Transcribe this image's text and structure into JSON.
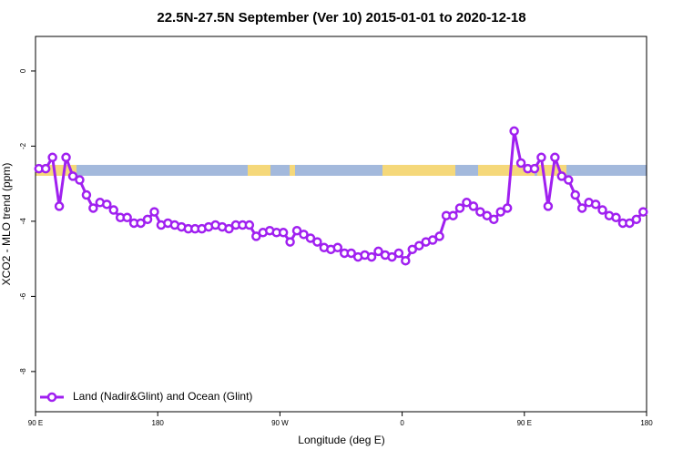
{
  "chart_data": {
    "type": "line",
    "title": "22.5N-27.5N September (Ver 10)   2015-01-01 to 2020-12-18",
    "x_label": "Longitude (deg E)",
    "y_label": "XCO2 - MLO trend (ppm)",
    "xlim": [
      90,
      540
    ],
    "xticks": [
      {
        "value": 90,
        "label": "90 E"
      },
      180,
      {
        "value": 270,
        "label": "90 W"
      },
      {
        "value": 360,
        "label": "0"
      },
      {
        "value": 450,
        "label": "90 E"
      },
      {
        "value": 540,
        "label": "180"
      }
    ],
    "ylim": [
      -9.07,
      0.92
    ],
    "yticks": [
      0,
      -2,
      -4,
      -6,
      -8
    ],
    "legend": "bottom-left",
    "x": [
      92.5,
      97.5,
      102.5,
      107.5,
      112.5,
      117.5,
      122.5,
      127.5,
      132.5,
      137.5,
      142.5,
      147.5,
      152.5,
      157.5,
      162.5,
      167.5,
      172.5,
      177.5,
      182.5,
      187.5,
      192.5,
      197.5,
      202.5,
      207.5,
      212.5,
      217.5,
      222.5,
      227.5,
      232.5,
      237.5,
      242.5,
      247.5,
      252.5,
      257.5,
      262.5,
      267.5,
      272.5,
      277.5,
      282.5,
      287.5,
      292.5,
      297.5,
      302.5,
      307.5,
      312.5,
      317.5,
      322.5,
      327.5,
      332.5,
      337.5,
      342.5,
      347.5,
      352.5,
      357.5,
      362.5,
      367.5,
      372.5,
      377.5,
      382.5,
      387.5,
      392.5,
      397.5,
      402.5,
      407.5,
      412.5,
      417.5,
      422.5,
      427.5,
      432.5,
      437.5,
      442.5,
      447.5,
      452.5,
      457.5,
      462.5,
      467.5,
      472.5,
      477.5,
      482.5,
      487.5,
      492.5,
      497.5,
      502.5,
      507.5,
      512.5,
      517.5,
      522.5,
      527.5,
      532.5,
      537.5
    ],
    "series": [
      {
        "name": "Land (Nadir&Glint) and Ocean (Glint)",
        "color": "#a020f0",
        "values": [
          -2.6,
          -2.6,
          -2.3,
          -3.6,
          -2.3,
          -2.8,
          -2.9,
          -3.3,
          -3.65,
          -3.5,
          -3.55,
          -3.7,
          -3.9,
          -3.9,
          -4.05,
          -4.05,
          -3.95,
          -3.75,
          -4.1,
          -4.05,
          -4.1,
          -4.15,
          -4.2,
          -4.2,
          -4.2,
          -4.15,
          -4.1,
          -4.15,
          -4.2,
          -4.1,
          -4.1,
          -4.1,
          -4.4,
          -4.3,
          -4.25,
          -4.3,
          -4.3,
          -4.55,
          -4.25,
          -4.35,
          -4.45,
          -4.55,
          -4.7,
          -4.75,
          -4.7,
          -4.85,
          -4.85,
          -4.95,
          -4.9,
          -4.95,
          -4.8,
          -4.9,
          -4.95,
          -4.85,
          -5.05,
          -4.75,
          -4.65,
          -4.55,
          -4.5,
          -4.4,
          -3.85,
          -3.85,
          -3.65,
          -3.5,
          -3.6,
          -3.75,
          -3.85,
          -3.95,
          -3.75,
          -3.65,
          -1.6,
          -2.45,
          -2.6,
          -2.6,
          -2.3,
          -3.6,
          -2.3,
          -2.8,
          -2.9,
          -3.3,
          -3.65,
          -3.5,
          -3.55,
          -3.7,
          -3.85,
          -3.9,
          -4.05,
          -4.05,
          -3.95,
          -3.75
        ]
      }
    ]
  }
}
